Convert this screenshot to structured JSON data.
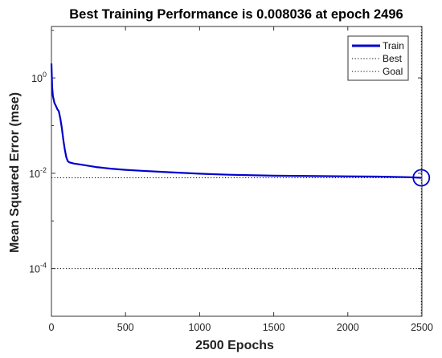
{
  "chart_data": {
    "type": "line",
    "title": "Best Training Performance is 0.008036 at epoch 2496",
    "xlabel": "2500 Epochs",
    "ylabel": "Mean Squared Error  (mse)",
    "xlim": [
      0,
      2500
    ],
    "ylim": [
      1e-05,
      12
    ],
    "y_scale": "log",
    "x_ticks": [
      0,
      500,
      1000,
      1500,
      2000,
      2500
    ],
    "x_tick_labels": [
      "0",
      "500",
      "1000",
      "1500",
      "2000",
      "2500"
    ],
    "y_ticks": [
      0.0001,
      0.01,
      1
    ],
    "y_tick_labels": [
      {
        "base": "10",
        "exp": "-4"
      },
      {
        "base": "10",
        "exp": "-2"
      },
      {
        "base": "10",
        "exp": "0"
      }
    ],
    "grid": false,
    "legend_position": "top-right",
    "series": [
      {
        "name": "Train",
        "color": "#0000cc",
        "style": "solid",
        "x": [
          0,
          5,
          10,
          20,
          30,
          40,
          50,
          60,
          70,
          80,
          90,
          100,
          110,
          120,
          150,
          200,
          300,
          400,
          500,
          600,
          800,
          1000,
          1200,
          1500,
          1800,
          2000,
          2200,
          2400,
          2496
        ],
        "y": [
          2.0,
          0.65,
          0.42,
          0.3,
          0.26,
          0.22,
          0.2,
          0.14,
          0.09,
          0.05,
          0.032,
          0.022,
          0.018,
          0.017,
          0.016,
          0.0152,
          0.0135,
          0.0125,
          0.0118,
          0.0113,
          0.0105,
          0.0098,
          0.0093,
          0.0089,
          0.0087,
          0.0086,
          0.0085,
          0.0083,
          0.008036
        ]
      },
      {
        "name": "Best",
        "color": "#000000",
        "style": "dotted",
        "hline_y": 0.008036,
        "vline_x": 2496
      },
      {
        "name": "Goal",
        "color": "#000000",
        "style": "dotted",
        "hline_y": 0.0001
      }
    ],
    "best_point": {
      "x": 2496,
      "y": 0.008036
    }
  }
}
